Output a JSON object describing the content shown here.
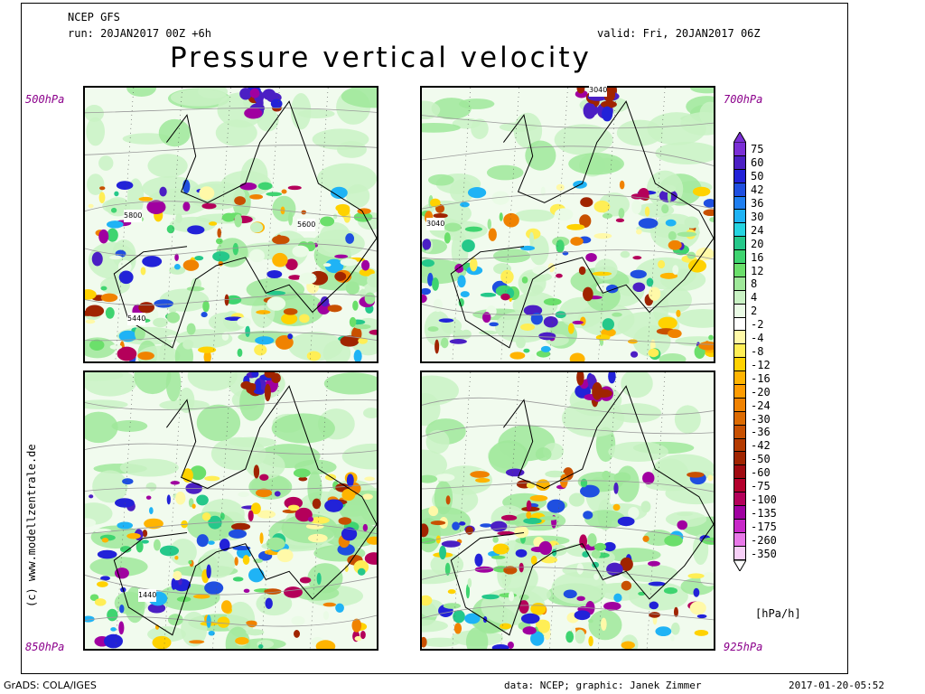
{
  "header": {
    "model": "NCEP GFS",
    "run": "run: 20JAN2017 00Z +6h",
    "valid": "valid: Fri, 20JAN2017 06Z",
    "title": "Pressure vertical velocity"
  },
  "panels": [
    {
      "level": "500hPa",
      "contour_labels": [
        "5800",
        "5600",
        "5440"
      ]
    },
    {
      "level": "700hPa",
      "contour_labels": [
        "3040",
        "3040"
      ]
    },
    {
      "level": "850hPa",
      "contour_labels": [
        "1440"
      ]
    },
    {
      "level": "925hPa",
      "contour_labels": []
    }
  ],
  "legend": {
    "unit": "[hPa/h]",
    "items": [
      {
        "label": "75",
        "color": "#7b2fd6"
      },
      {
        "label": "60",
        "color": "#4b1fc4"
      },
      {
        "label": "50",
        "color": "#2222d8"
      },
      {
        "label": "42",
        "color": "#1f4fe0"
      },
      {
        "label": "36",
        "color": "#1f7ff0"
      },
      {
        "label": "30",
        "color": "#1fb3f5"
      },
      {
        "label": "24",
        "color": "#25d3e0"
      },
      {
        "label": "20",
        "color": "#25c88a"
      },
      {
        "label": "16",
        "color": "#3fd470"
      },
      {
        "label": "12",
        "color": "#6bdf6b"
      },
      {
        "label": "8",
        "color": "#9fe89a"
      },
      {
        "label": "4",
        "color": "#c9f2c4"
      },
      {
        "label": "2",
        "color": "#eafbe6"
      },
      {
        "label": "-2",
        "color": "#ffffff"
      },
      {
        "label": "-4",
        "color": "#fff9a8"
      },
      {
        "label": "-8",
        "color": "#ffee55"
      },
      {
        "label": "-12",
        "color": "#ffd200"
      },
      {
        "label": "-16",
        "color": "#ffb400"
      },
      {
        "label": "-20",
        "color": "#ff9c00"
      },
      {
        "label": "-24",
        "color": "#f08200"
      },
      {
        "label": "-30",
        "color": "#dc6a00"
      },
      {
        "label": "-36",
        "color": "#c85000"
      },
      {
        "label": "-42",
        "color": "#b43a00"
      },
      {
        "label": "-50",
        "color": "#a02400"
      },
      {
        "label": "-60",
        "color": "#a00a10"
      },
      {
        "label": "-75",
        "color": "#b4002c"
      },
      {
        "label": "-100",
        "color": "#b4005a"
      },
      {
        "label": "-135",
        "color": "#a000a0"
      },
      {
        "label": "-175",
        "color": "#c828c8"
      },
      {
        "label": "-260",
        "color": "#e878e8"
      },
      {
        "label": "-350",
        "color": "#f8d0f8"
      }
    ]
  },
  "credit": "(c) www.modellzentrale.de",
  "footer": {
    "left": "GrADS: COLA/IGES",
    "middle": "data: NCEP; graphic: Janek Zimmer",
    "right": "2017-01-20-05:52"
  }
}
